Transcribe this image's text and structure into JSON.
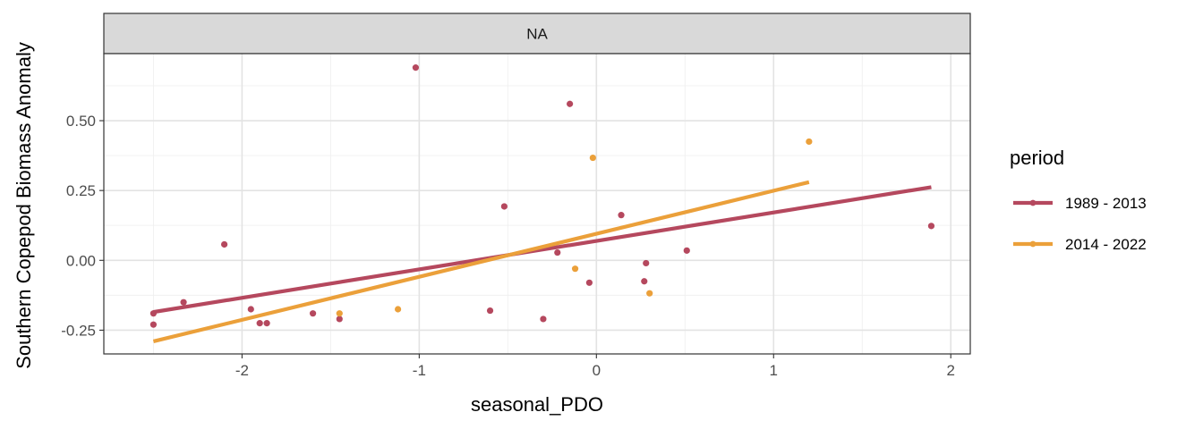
{
  "chart_data": {
    "type": "scatter",
    "facet_label": "NA",
    "xlabel": "seasonal_PDO",
    "ylabel": "Southern Copepod Biomass Anomaly",
    "xlim": [
      -2.78,
      2.11
    ],
    "ylim": [
      -0.335,
      0.74
    ],
    "x_ticks": [
      -2,
      -1,
      0,
      1,
      2
    ],
    "x_tick_labels": [
      "-2",
      "-1",
      "0",
      "1",
      "2"
    ],
    "y_ticks": [
      -0.25,
      0,
      0.25,
      0.5
    ],
    "y_tick_labels": [
      "-0.25",
      "0.00",
      "0.25",
      "0.50"
    ],
    "grid": true,
    "legend": {
      "title": "period",
      "position": "right",
      "entries": [
        "1989 - 2013",
        "2014 - 2022"
      ]
    },
    "series": [
      {
        "name": "1989 - 2013",
        "color": "#B5485E",
        "points": [
          [
            -2.5,
            -0.23
          ],
          [
            -2.5,
            -0.19
          ],
          [
            -2.33,
            -0.15
          ],
          [
            -2.1,
            0.057
          ],
          [
            -1.95,
            -0.175
          ],
          [
            -1.9,
            -0.225
          ],
          [
            -1.86,
            -0.225
          ],
          [
            -1.6,
            -0.19
          ],
          [
            -1.45,
            -0.21
          ],
          [
            -1.02,
            0.69
          ],
          [
            -0.6,
            -0.18
          ],
          [
            -0.52,
            0.193
          ],
          [
            -0.3,
            -0.21
          ],
          [
            -0.22,
            0.028
          ],
          [
            -0.15,
            0.56
          ],
          [
            -0.04,
            -0.08
          ],
          [
            0.14,
            0.162
          ],
          [
            0.27,
            -0.075
          ],
          [
            0.28,
            -0.01
          ],
          [
            0.51,
            0.035
          ],
          [
            1.89,
            0.123
          ]
        ],
        "fit": {
          "x": [
            -2.5,
            1.89
          ],
          "y": [
            -0.185,
            0.262
          ]
        }
      },
      {
        "name": "2014 - 2022",
        "color": "#EBA03A",
        "points": [
          [
            -1.45,
            -0.19
          ],
          [
            -1.12,
            -0.175
          ],
          [
            -0.12,
            -0.03
          ],
          [
            -0.02,
            0.367
          ],
          [
            0.3,
            -0.118
          ],
          [
            1.2,
            0.425
          ]
        ],
        "fit": {
          "x": [
            -2.5,
            1.2
          ],
          "y": [
            -0.29,
            0.28
          ]
        }
      }
    ]
  }
}
